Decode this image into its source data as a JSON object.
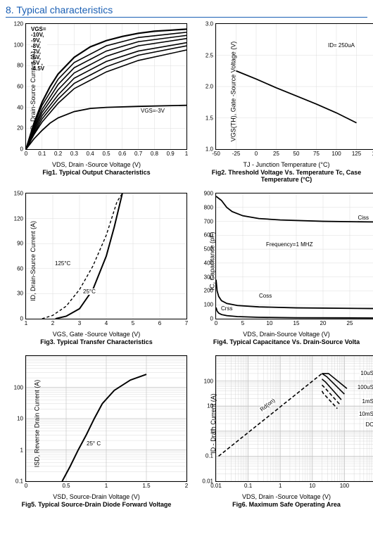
{
  "section_title": "8. Typical characteristics",
  "fig1": {
    "type": "line",
    "ylabel": "ID, Drain-Source Current (A)",
    "xlabel": "VDS, Drain -Source Voltage (V)",
    "caption": "Fig1. Typical Output Characteristics",
    "xlim": [
      0,
      1.0
    ],
    "ylim": [
      0,
      120
    ],
    "xticks": [
      "0",
      "0.1",
      "0.2",
      "0.3",
      "0.4",
      "0.5",
      "0.6",
      "0.7",
      "0.8",
      "0.9",
      "1"
    ],
    "yticks": [
      "0",
      "20",
      "40",
      "60",
      "80",
      "100",
      "120"
    ],
    "legend_title": "VGS=",
    "legend_items": [
      "-10V,",
      "-9V,",
      "-8V,",
      "-7V,",
      "-6V,",
      "-5V ,",
      "-4.5V"
    ],
    "annot_vgs3": "VGS=-3V",
    "line_color": "#000000",
    "series_main": [
      [
        0,
        0
      ],
      [
        0.05,
        25
      ],
      [
        0.1,
        45
      ],
      [
        0.15,
        60
      ],
      [
        0.2,
        72
      ],
      [
        0.3,
        88
      ],
      [
        0.4,
        98
      ],
      [
        0.5,
        104
      ],
      [
        0.6,
        108
      ],
      [
        0.7,
        111
      ],
      [
        0.8,
        113
      ],
      [
        0.9,
        114
      ],
      [
        1.0,
        115
      ]
    ],
    "series_spread": [
      [
        [
          0,
          0
        ],
        [
          0.05,
          23
        ],
        [
          0.1,
          42
        ],
        [
          0.2,
          67
        ],
        [
          0.3,
          83
        ],
        [
          0.5,
          99
        ],
        [
          0.7,
          107
        ],
        [
          1.0,
          112
        ]
      ],
      [
        [
          0,
          0
        ],
        [
          0.05,
          21
        ],
        [
          0.1,
          38
        ],
        [
          0.2,
          62
        ],
        [
          0.3,
          78
        ],
        [
          0.5,
          94
        ],
        [
          0.7,
          103
        ],
        [
          1.0,
          109
        ]
      ],
      [
        [
          0,
          0
        ],
        [
          0.05,
          19
        ],
        [
          0.1,
          35
        ],
        [
          0.2,
          57
        ],
        [
          0.3,
          73
        ],
        [
          0.5,
          89
        ],
        [
          0.7,
          99
        ],
        [
          1.0,
          106
        ]
      ],
      [
        [
          0,
          0
        ],
        [
          0.05,
          17
        ],
        [
          0.1,
          32
        ],
        [
          0.2,
          52
        ],
        [
          0.3,
          68
        ],
        [
          0.5,
          84
        ],
        [
          0.7,
          94
        ],
        [
          1.0,
          102
        ]
      ],
      [
        [
          0,
          0
        ],
        [
          0.05,
          15
        ],
        [
          0.1,
          29
        ],
        [
          0.2,
          48
        ],
        [
          0.3,
          63
        ],
        [
          0.5,
          79
        ],
        [
          0.7,
          90
        ],
        [
          1.0,
          99
        ]
      ],
      [
        [
          0,
          0
        ],
        [
          0.05,
          14
        ],
        [
          0.1,
          26
        ],
        [
          0.2,
          44
        ],
        [
          0.3,
          58
        ],
        [
          0.5,
          74
        ],
        [
          0.7,
          85
        ],
        [
          1.0,
          95
        ]
      ]
    ],
    "series_vgs3": [
      [
        0,
        0
      ],
      [
        0.05,
        10
      ],
      [
        0.1,
        18
      ],
      [
        0.15,
        25
      ],
      [
        0.2,
        30
      ],
      [
        0.3,
        36
      ],
      [
        0.4,
        39
      ],
      [
        0.5,
        40
      ],
      [
        0.7,
        41
      ],
      [
        1.0,
        42
      ]
    ]
  },
  "fig2": {
    "type": "line",
    "ylabel": "VGS(TH), Gate -Source Voltage (V)",
    "xlabel": "TJ - Junction Temperature (°C)",
    "caption": "Fig2. Threshold Voltage Vs. Temperature Tc, Case Temperature (°C)",
    "xlim": [
      -50,
      150
    ],
    "ylim": [
      1.0,
      3.0
    ],
    "xticks": [
      "-50",
      "-25",
      "0",
      "25",
      "50",
      "75",
      "100",
      "125",
      "150"
    ],
    "yticks": [
      "1.0",
      "1.5",
      "2.0",
      "2.5",
      "3.0"
    ],
    "annot_id": "ID= 250uA",
    "line_color": "#000000",
    "series": [
      [
        -25,
        2.25
      ],
      [
        0,
        2.12
      ],
      [
        25,
        1.98
      ],
      [
        50,
        1.85
      ],
      [
        75,
        1.72
      ],
      [
        100,
        1.58
      ],
      [
        125,
        1.42
      ]
    ]
  },
  "fig3": {
    "type": "line",
    "ylabel": "ID, Drain-Source Current (A)",
    "xlabel": "VGS, Gate -Source Voltage (V)",
    "caption": "Fig3. Typical Transfer Characteristics",
    "xlim": [
      1,
      7
    ],
    "ylim": [
      0,
      150
    ],
    "xticks": [
      "1",
      "2",
      "3",
      "4",
      "5",
      "6",
      "7"
    ],
    "yticks": [
      "0",
      "30",
      "60",
      "90",
      "120",
      "150"
    ],
    "annot_25c": "25°C",
    "annot_125c": "125°C",
    "line_color": "#000000",
    "series_25c": [
      [
        2.1,
        0
      ],
      [
        2.5,
        3
      ],
      [
        3.0,
        12
      ],
      [
        3.5,
        35
      ],
      [
        4.0,
        75
      ],
      [
        4.3,
        110
      ],
      [
        4.6,
        150
      ]
    ],
    "series_125c": [
      [
        1.6,
        0
      ],
      [
        2.0,
        4
      ],
      [
        2.5,
        15
      ],
      [
        3.0,
        35
      ],
      [
        3.5,
        63
      ],
      [
        4.0,
        100
      ],
      [
        4.4,
        140
      ],
      [
        4.6,
        150
      ]
    ]
  },
  "fig4": {
    "type": "line",
    "ylabel": "IC, Capacitance (pF)",
    "xlabel": "VDS, Drain-Source Voltage (V)",
    "caption": "Fig4. Typical Capacitance Vs. Drain-Source Volta",
    "xlim": [
      0,
      30
    ],
    "ylim": [
      0,
      900
    ],
    "xticks": [
      "0",
      "5",
      "10",
      "15",
      "20",
      "25",
      "30"
    ],
    "yticks": [
      "0",
      "100",
      "200",
      "300",
      "400",
      "500",
      "600",
      "700",
      "800",
      "900"
    ],
    "annot_freq": "Frequency=1 MHZ",
    "label_ciss": "Ciss",
    "label_coss": "Coss",
    "label_crss": "Crss",
    "line_color": "#000000",
    "series_ciss": [
      [
        0,
        880
      ],
      [
        1,
        850
      ],
      [
        2,
        800
      ],
      [
        3,
        770
      ],
      [
        5,
        740
      ],
      [
        8,
        720
      ],
      [
        12,
        710
      ],
      [
        20,
        700
      ],
      [
        30,
        695
      ]
    ],
    "series_coss": [
      [
        0,
        280
      ],
      [
        0.2,
        200
      ],
      [
        0.5,
        160
      ],
      [
        1,
        130
      ],
      [
        2,
        110
      ],
      [
        4,
        95
      ],
      [
        8,
        85
      ],
      [
        15,
        78
      ],
      [
        30,
        73
      ]
    ],
    "series_crss": [
      [
        0,
        80
      ],
      [
        0.2,
        55
      ],
      [
        0.5,
        40
      ],
      [
        1,
        30
      ],
      [
        2,
        22
      ],
      [
        4,
        15
      ],
      [
        8,
        10
      ],
      [
        15,
        7
      ],
      [
        25,
        6
      ],
      [
        30,
        5
      ]
    ]
  },
  "fig5": {
    "type": "line_log_y",
    "ylabel": "ISD, Reverse Drain Current (A)",
    "xlabel": "VSD, Source-Drain Voltage (V)",
    "caption": "Fig5. Typical Source-Drain Diode Forward Voltage",
    "xlim": [
      0,
      2.0
    ],
    "ylim": [
      0.1,
      1000
    ],
    "xticks": [
      "0",
      "0.5",
      "1",
      "1.5",
      "2"
    ],
    "yticks": [
      "0.1",
      "1",
      "10",
      "100"
    ],
    "annot_25c": "25°  C",
    "line_color": "#000000",
    "grid_color": "#c0c0c0",
    "series": [
      [
        0.45,
        0.1
      ],
      [
        0.55,
        0.3
      ],
      [
        0.65,
        1
      ],
      [
        0.75,
        3
      ],
      [
        0.85,
        10
      ],
      [
        0.95,
        30
      ],
      [
        1.1,
        80
      ],
      [
        1.3,
        170
      ],
      [
        1.5,
        260
      ]
    ]
  },
  "fig6": {
    "type": "loglog",
    "ylabel": "ID - Drain Current (A)",
    "xlabel": "VDS, Drain -Source Voltage (V)",
    "caption": "Fig6. Maximum Safe Operating Area",
    "xlim": [
      0.01,
      1000
    ],
    "ylim": [
      0.01,
      1000
    ],
    "xticks": [
      "0.01",
      "0.1",
      "1",
      "10",
      "100"
    ],
    "yticks": [
      "0.01",
      "",
      "0.1",
      "1",
      "10",
      "100"
    ],
    "annot_rdon": "Rd(on)",
    "pulse_labels": [
      "10uS",
      "100uS",
      "1mS",
      "10mS",
      "DC"
    ],
    "line_color": "#000000",
    "grid_color": "#c0c0c0",
    "rdon_line": [
      [
        0.012,
        0.1
      ],
      [
        20,
        200
      ]
    ],
    "limit_top": 200,
    "pulse_lines": [
      [
        [
          20,
          200
        ],
        [
          32,
          200
        ],
        [
          120,
          50
        ]
      ],
      [
        [
          20,
          200
        ],
        [
          28,
          150
        ],
        [
          100,
          30
        ]
      ],
      [
        [
          20,
          120
        ],
        [
          26,
          90
        ],
        [
          80,
          18
        ]
      ],
      [
        [
          20,
          70
        ],
        [
          24,
          55
        ],
        [
          70,
          12
        ]
      ],
      [
        [
          20,
          40
        ],
        [
          22,
          32
        ],
        [
          60,
          8
        ]
      ]
    ]
  }
}
